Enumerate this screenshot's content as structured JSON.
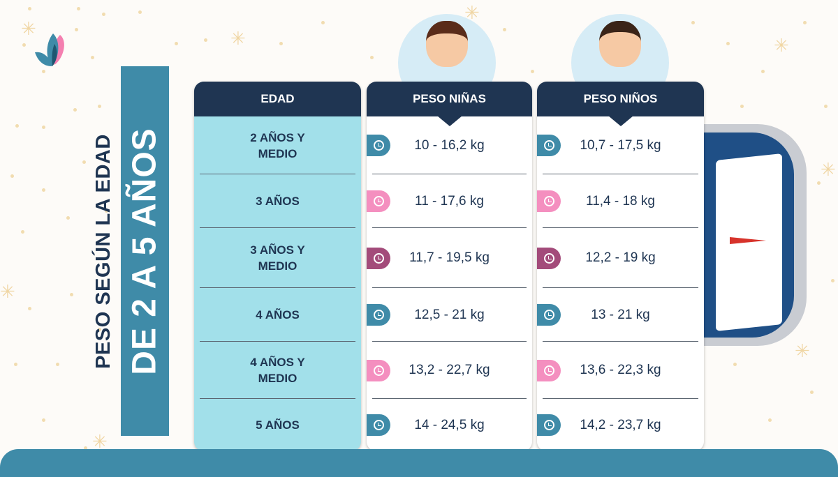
{
  "title": {
    "line1": "PESO SEGÚN LA EDAD",
    "line2": "DE 2 A 5 AÑOS"
  },
  "headers": {
    "age": "EDAD",
    "girls": "PESO NIÑAS",
    "boys": "PESO NIÑOS"
  },
  "colors": {
    "navy": "#1f3552",
    "teal": "#3f8ba8",
    "light_blue": "#a2e0ea",
    "pink": "#f48fbf",
    "plum": "#a34b7a"
  },
  "rows": [
    {
      "age": "2 AÑOS Y MEDIO",
      "girls": "10 - 16,2 kg",
      "boys": "10,7 - 17,5 kg",
      "badge_color": "#3f8ba8"
    },
    {
      "age": "3 AÑOS",
      "girls": "11 - 17,6 kg",
      "boys": "11,4 - 18 kg",
      "badge_color": "#f48fbf"
    },
    {
      "age": "3 AÑOS Y MEDIO",
      "girls": "11,7 - 19,5 kg",
      "boys": "12,2 - 19 kg",
      "badge_color": "#a34b7a"
    },
    {
      "age": "4 AÑOS",
      "girls": "12,5 - 21 kg",
      "boys": "13 - 21 kg",
      "badge_color": "#3f8ba8"
    },
    {
      "age": "4 AÑOS Y MEDIO",
      "girls": "13,2 - 22,7 kg",
      "boys": "13,6 - 22,3 kg",
      "badge_color": "#f48fbf"
    },
    {
      "age": "5 AÑOS",
      "girls": "14 - 24,5 kg",
      "boys": "14,2 - 23,7 kg",
      "badge_color": "#3f8ba8"
    }
  ],
  "icons": {
    "badge": "clock-icon",
    "logo": "leaf-logo",
    "scale": "weighing-scale"
  }
}
